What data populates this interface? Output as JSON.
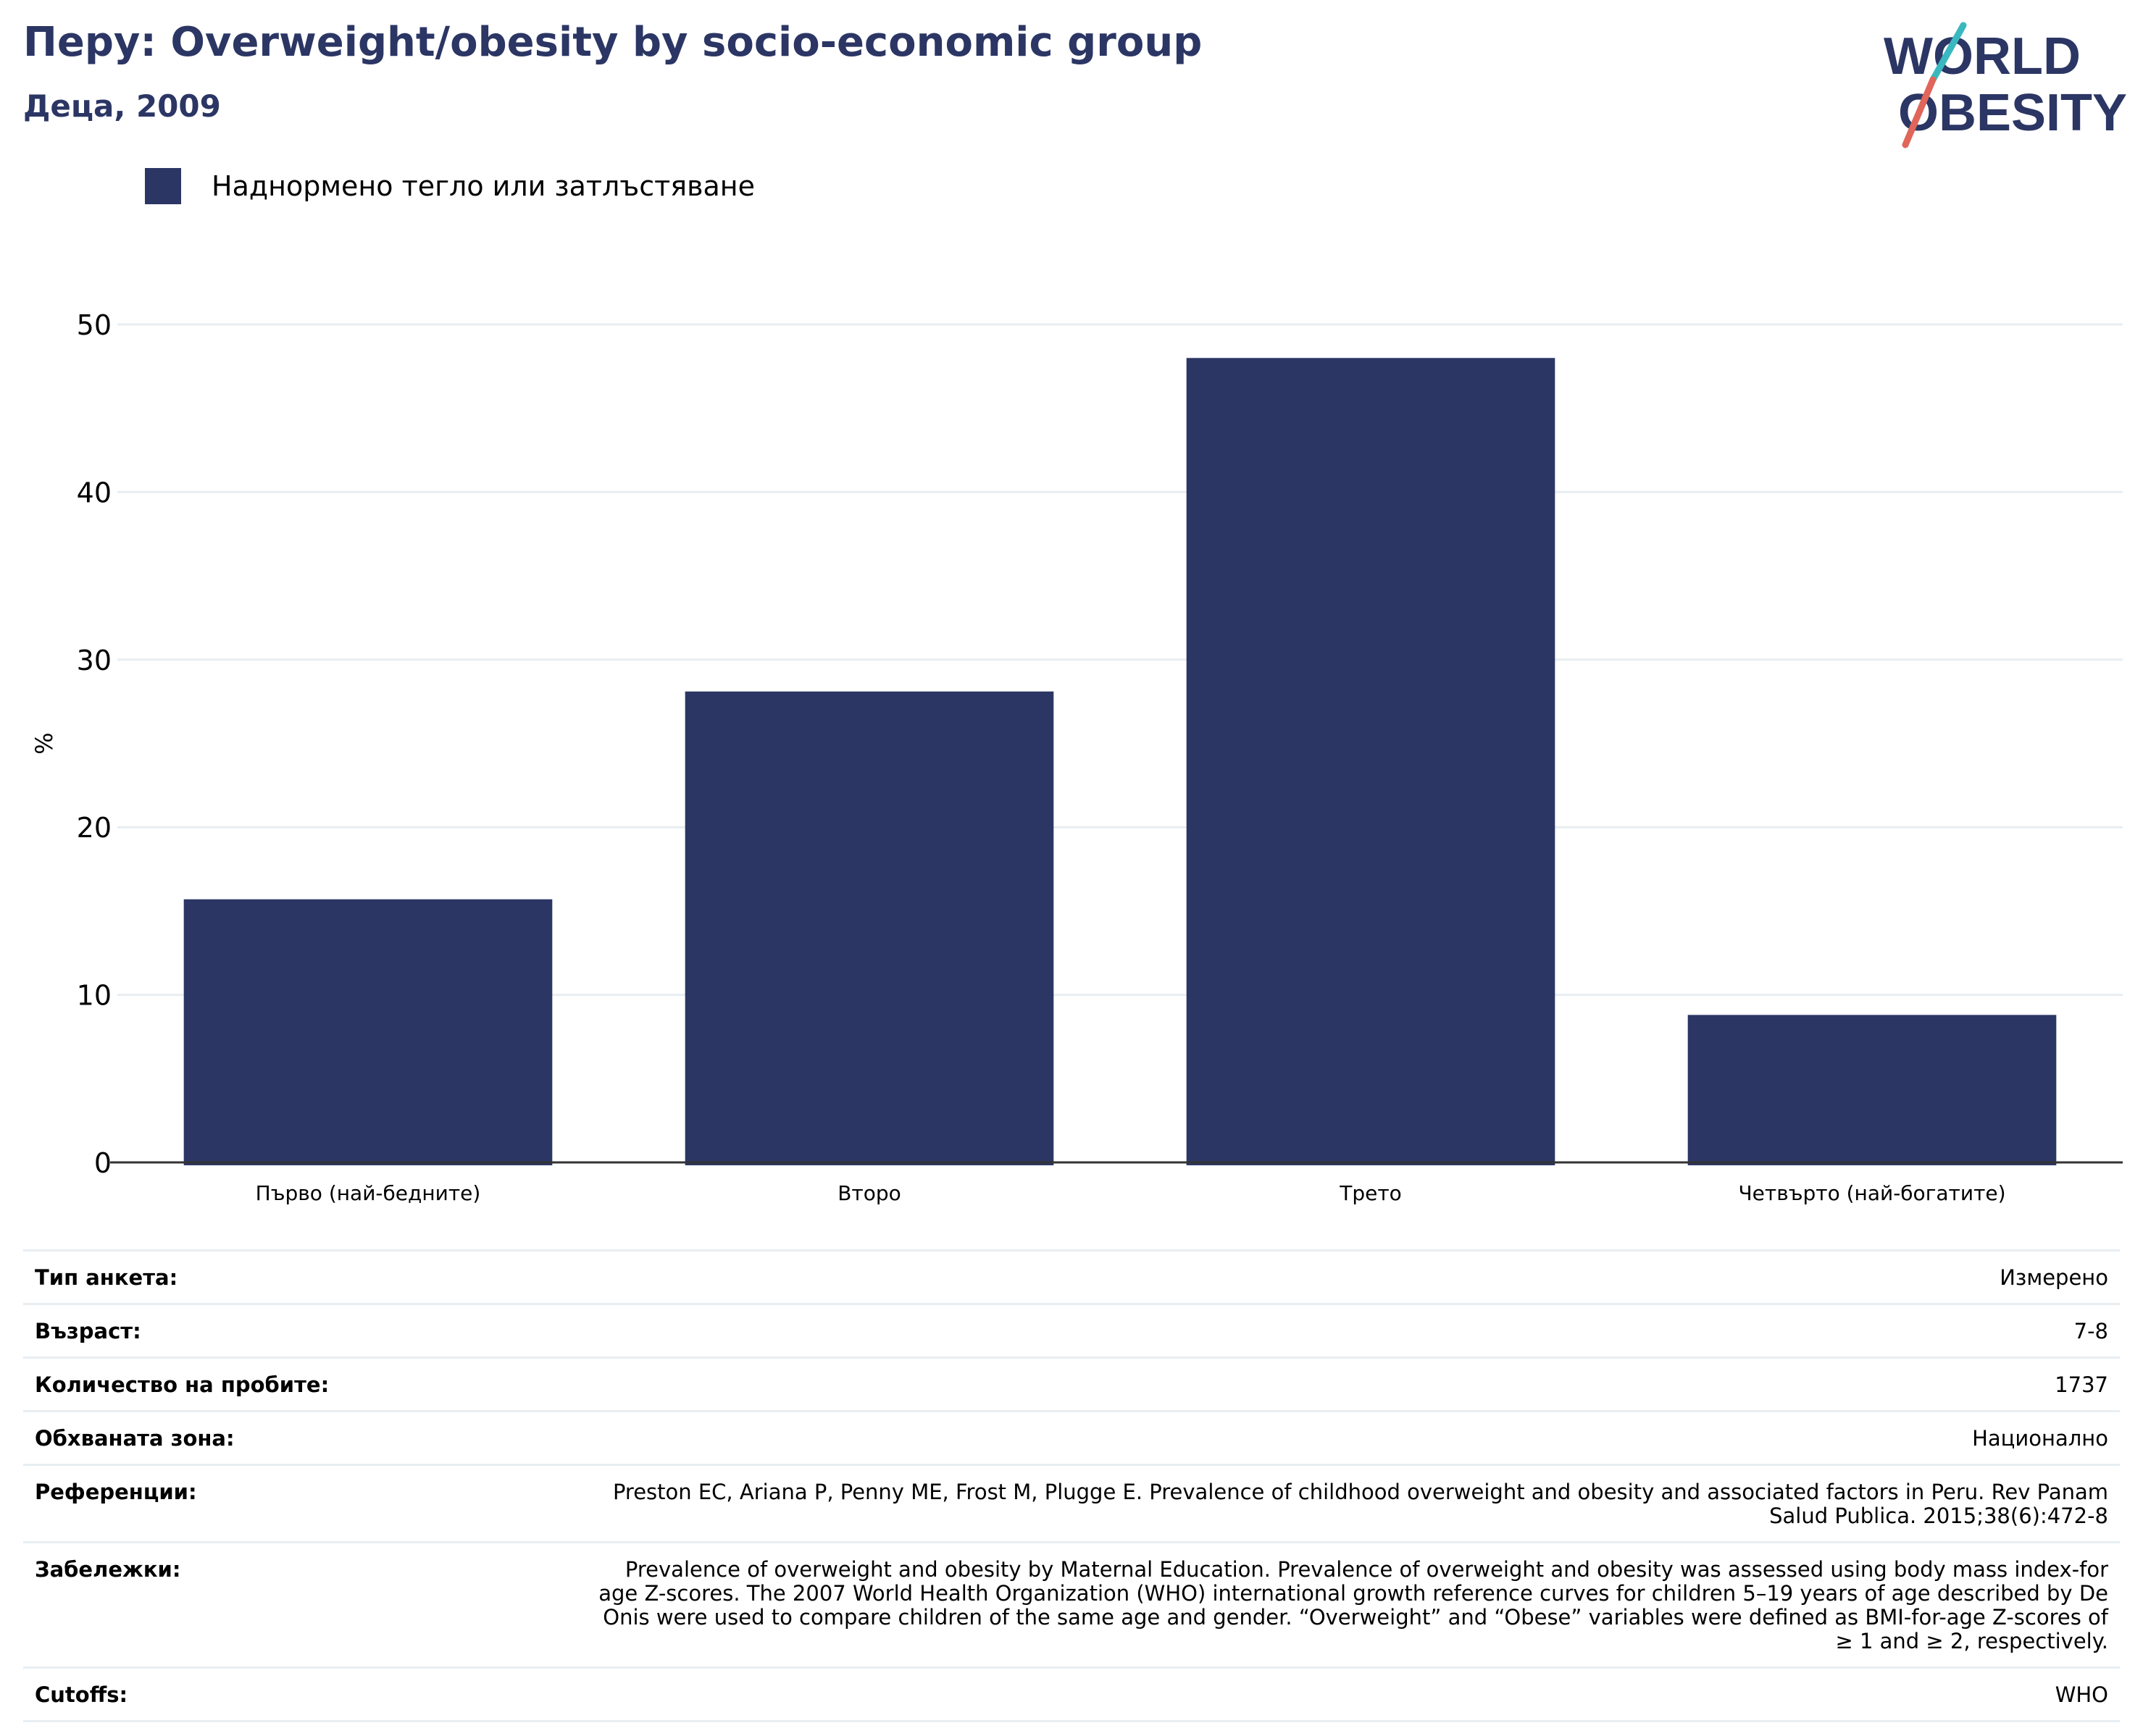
{
  "header": {
    "title": "Перу: Overweight/obesity by socio-economic group",
    "subtitle": "Деца, 2009"
  },
  "logo": {
    "line1": "WORLD",
    "line2": "OBESITY"
  },
  "colors": {
    "bar": "#2b3664",
    "title": "#2b3664",
    "grid": "#e8eef2",
    "logo_slash_top": "#3ab8c0",
    "logo_slash_bottom": "#e0655a"
  },
  "legend": {
    "label": "Наднормено тегло или затлъстяване"
  },
  "chart_data": {
    "type": "bar",
    "categories": [
      "Първо (най-бедните)",
      "Второ",
      "Трето",
      "Четвърто (най-богатите)"
    ],
    "series": [
      {
        "name": "Наднормено тегло или затлъстяване",
        "values": [
          15.7,
          28.1,
          48.0,
          8.8
        ]
      }
    ],
    "ylabel": "%",
    "ylim": [
      0,
      50
    ],
    "yticks": [
      0,
      10,
      20,
      30,
      40,
      50
    ],
    "grid": true,
    "legend_position": "top-left"
  },
  "meta": [
    {
      "key": "Тип анкета:",
      "value": "Измерено"
    },
    {
      "key": "Възраст:",
      "value": "7-8"
    },
    {
      "key": "Количество на пробите:",
      "value": "1737"
    },
    {
      "key": "Обхваната зона:",
      "value": "Национално"
    },
    {
      "key": "Референции:",
      "value": "Preston EC, Ariana P, Penny ME, Frost M, Plugge E. Prevalence of childhood overweight and obesity and associated factors in Peru. Rev Panam Salud Publica. 2015;38(6):472-8"
    },
    {
      "key": "Забележки:",
      "value": "Prevalence of overweight and obesity by Maternal Education. Prevalence of overweight and obesity was assessed using body mass index-for age Z-scores. The 2007 World Health Organization (WHO) international growth reference curves for children 5–19 years of age described by De Onis were used to compare children of the same age and gender. “Overweight” and “Obese” variables were defined as BMI-for-age Z-scores of ≥ 1 and ≥ 2, respectively."
    },
    {
      "key": "Cutoffs:",
      "value": "WHO"
    }
  ]
}
